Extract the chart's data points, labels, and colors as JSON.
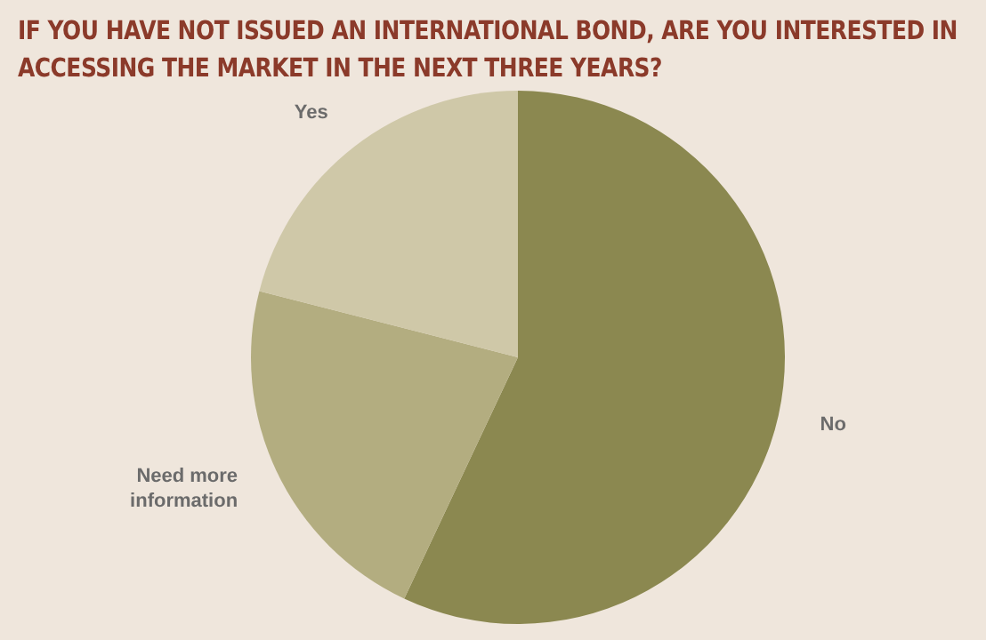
{
  "chart_data": {
    "type": "pie",
    "title": "IF YOU HAVE NOT ISSUED AN INTERNATIONAL BOND, ARE YOU INTERESTED IN ACCESSING THE MARKET IN THE NEXT THREE YEARS?",
    "categories": [
      "No",
      "Need more information",
      "Yes"
    ],
    "values": [
      57,
      22,
      21
    ],
    "colors": [
      "#8b8850",
      "#b3ad80",
      "#cfc8a8"
    ],
    "legend": false
  }
}
